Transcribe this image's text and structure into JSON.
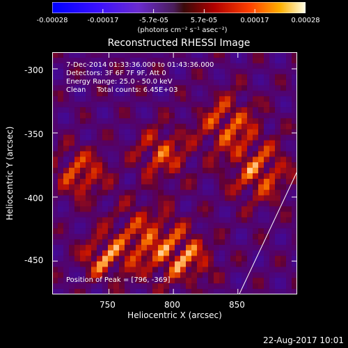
{
  "colorbar": {
    "ticks": [
      "-0.00028",
      "-0.00017",
      "-5.7e-05",
      "5.7e-05",
      "0.00017",
      "0.00028"
    ],
    "unit": "(photons cm⁻² s⁻¹ asec⁻²)",
    "min": -0.00028,
    "max": 0.00028
  },
  "chart_data": {
    "type": "heatmap",
    "title": "Reconstructed RHESSI Image",
    "xlabel": "Heliocentric X (arcsec)",
    "ylabel": "Heliocentric Y (arcsec)",
    "xlim": [
      706,
      896
    ],
    "ylim": [
      -476,
      -287
    ],
    "xticks": [
      "750",
      "800",
      "850"
    ],
    "yticks": [
      "-300",
      "-350",
      "-400",
      "-450"
    ],
    "xtick_values": [
      750,
      800,
      850
    ],
    "ytick_values": [
      -300,
      -350,
      -400,
      -450
    ],
    "annotations": {
      "time": "7-Dec-2014 01:33:36.000 to 01:43:36.000",
      "detectors": "Detectors: 3F 6F 7F 9F, Att 0",
      "energy": "Energy Range: 25.0 - 50.0 keV",
      "method": "Clean     Total counts: 6.45E+03",
      "peak": "Position of Peak = [796, -369]"
    },
    "limb_line": [
      [
        851,
        -476
      ],
      [
        896,
        -380
      ]
    ]
  },
  "footer": {
    "date": "22-Aug-2017 10:01"
  }
}
